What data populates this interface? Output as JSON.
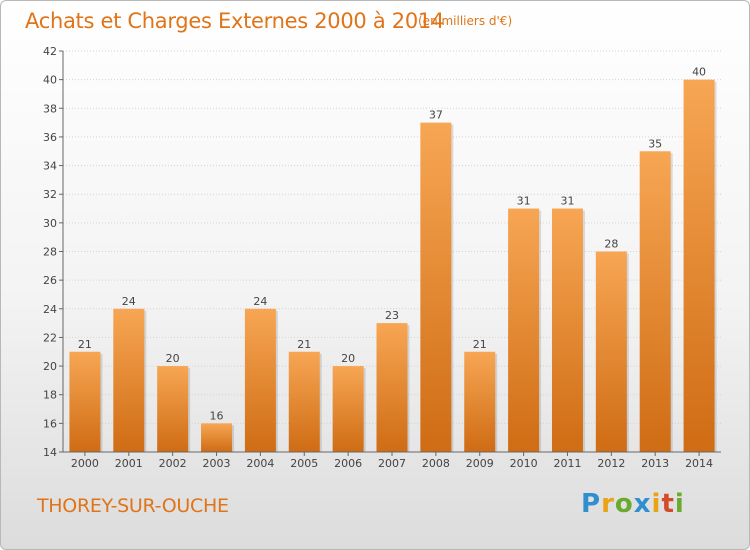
{
  "header": {
    "title": "Achats et Charges Externes 2000 à 2014",
    "subtitle": "(en milliers d'€)"
  },
  "footer": {
    "commune": "THOREY-SUR-OUCHE",
    "logo_text": "Proxiti"
  },
  "colors": {
    "accent": "#e07418",
    "bar_light": "#f7a654",
    "bar_dark": "#cf6c14",
    "logo_letters": [
      "#2f8fd0",
      "#e8a317",
      "#6aaa2c",
      "#2f8fd0",
      "#e8a317",
      "#d44a2a",
      "#6aaa2c"
    ]
  },
  "chart_data": {
    "type": "bar",
    "categories": [
      "2000",
      "2001",
      "2002",
      "2003",
      "2004",
      "2005",
      "2006",
      "2007",
      "2008",
      "2009",
      "2010",
      "2011",
      "2012",
      "2013",
      "2014"
    ],
    "values": [
      21,
      24,
      20,
      16,
      24,
      21,
      20,
      23,
      37,
      21,
      31,
      31,
      28,
      35,
      40
    ],
    "title": "Achats et Charges Externes 2000 à 2014",
    "subtitle": "(en milliers d'€)",
    "ylim": [
      14,
      42
    ],
    "yticks": [
      14,
      16,
      18,
      20,
      22,
      24,
      26,
      28,
      30,
      32,
      34,
      36,
      38,
      40,
      42
    ],
    "grid": true,
    "data_labels": true
  }
}
